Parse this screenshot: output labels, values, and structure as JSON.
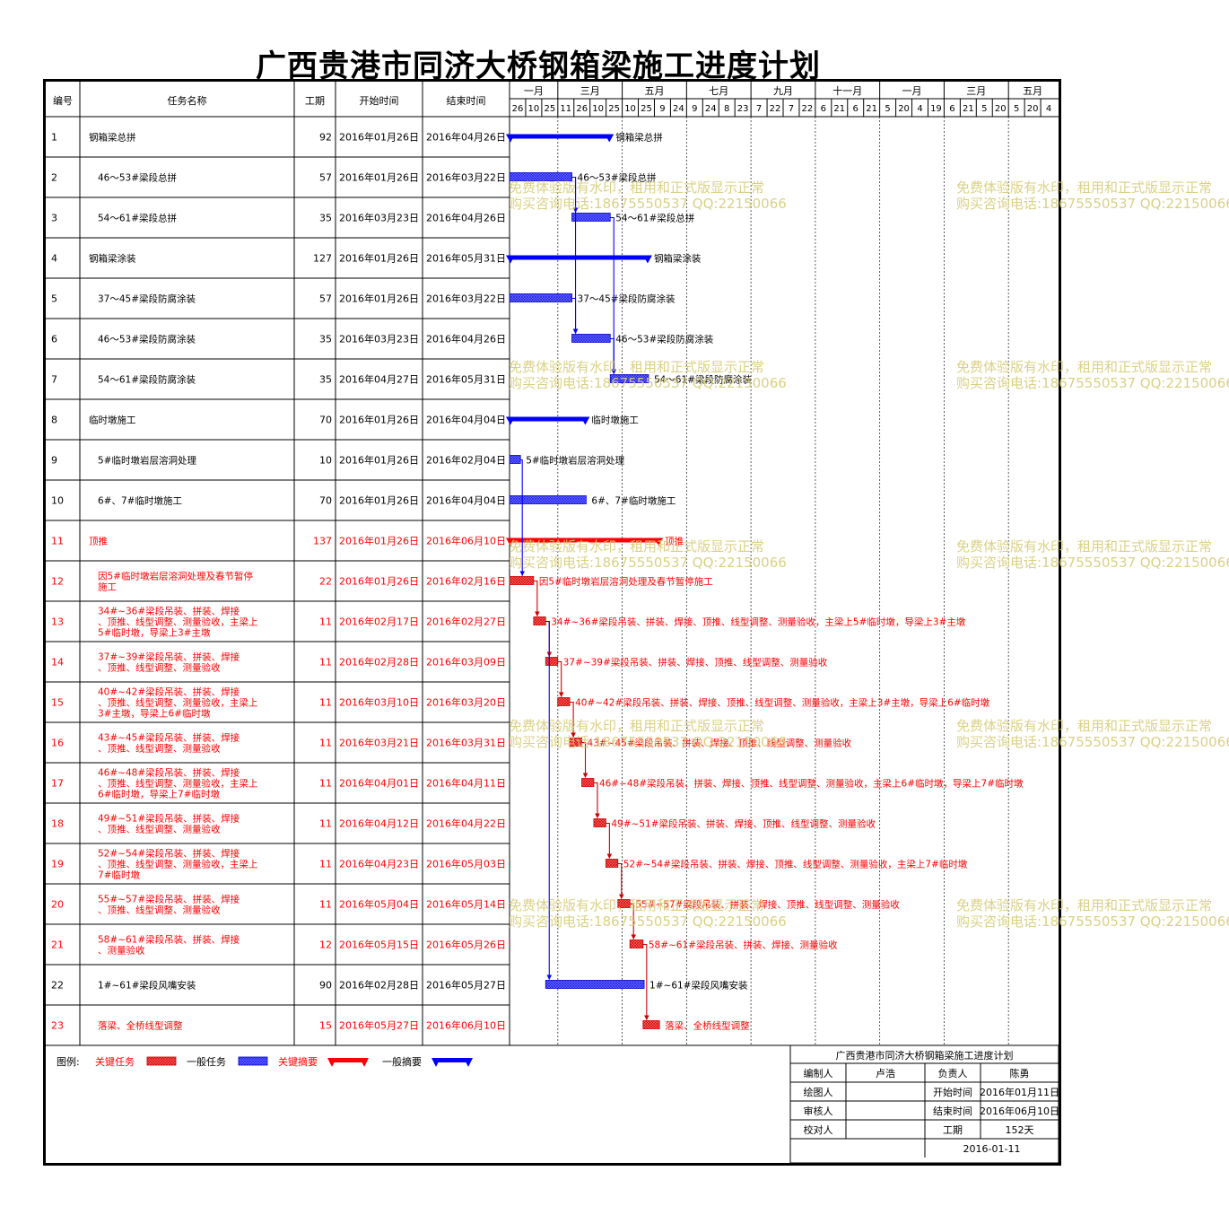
{
  "title": "广西贵港市同济大桥钢箱梁施工进度计划",
  "columns": [
    "编号",
    "任务名称",
    "工期",
    "开始时间",
    "结束时间"
  ],
  "timescale": {
    "months": [
      "一月",
      "三月",
      "五月",
      "七月",
      "九月",
      "十一月",
      "一月",
      "三月",
      "五月"
    ],
    "days": [
      "26",
      "10",
      "25",
      "11",
      "26",
      "10",
      "25",
      "10",
      "25",
      "9",
      "24",
      "9",
      "24",
      "8",
      "23",
      "7",
      "22",
      "7",
      "22",
      "6",
      "21",
      "6",
      "21",
      "5",
      "20",
      "4",
      "19",
      "6",
      "21",
      "5",
      "20",
      "5",
      "20",
      "4"
    ]
  },
  "chart_data": {
    "type": "gantt",
    "tasks": [
      {
        "id": "1",
        "name": "钢箱梁总拼",
        "duration": "92",
        "start": "2016年01月26日",
        "end": "2016年04月26日",
        "kind": "summary",
        "critical": false
      },
      {
        "id": "2",
        "name": "46～53#梁段总拼",
        "duration": "57",
        "start": "2016年01月26日",
        "end": "2016年03月22日",
        "kind": "task",
        "critical": false
      },
      {
        "id": "3",
        "name": "54～61#梁段总拼",
        "duration": "35",
        "start": "2016年03月23日",
        "end": "2016年04月26日",
        "kind": "task",
        "critical": false
      },
      {
        "id": "4",
        "name": "钢箱梁涂装",
        "duration": "127",
        "start": "2016年01月26日",
        "end": "2016年05月31日",
        "kind": "summary",
        "critical": false
      },
      {
        "id": "5",
        "name": "37～45#梁段防腐涂装",
        "duration": "57",
        "start": "2016年01月26日",
        "end": "2016年03月22日",
        "kind": "task",
        "critical": false
      },
      {
        "id": "6",
        "name": "46～53#梁段防腐涂装",
        "duration": "35",
        "start": "2016年03月23日",
        "end": "2016年04月26日",
        "kind": "task",
        "critical": false
      },
      {
        "id": "7",
        "name": "54～61#梁段防腐涂装",
        "duration": "35",
        "start": "2016年04月27日",
        "end": "2016年05月31日",
        "kind": "task",
        "critical": false
      },
      {
        "id": "8",
        "name": "临时墩施工",
        "duration": "70",
        "start": "2016年01月26日",
        "end": "2016年04月04日",
        "kind": "summary",
        "critical": false
      },
      {
        "id": "9",
        "name": "5#临时墩岩层溶洞处理",
        "duration": "10",
        "start": "2016年01月26日",
        "end": "2016年02月04日",
        "kind": "task",
        "critical": false
      },
      {
        "id": "10",
        "name": "6#、7#临时墩施工",
        "duration": "70",
        "start": "2016年01月26日",
        "end": "2016年04月04日",
        "kind": "task",
        "critical": false
      },
      {
        "id": "11",
        "name": "顶推",
        "duration": "137",
        "start": "2016年01月26日",
        "end": "2016年06月10日",
        "kind": "summary",
        "critical": true
      },
      {
        "id": "12",
        "name": "因5#临时墩岩层溶洞处理及春节暂停施工",
        "duration": "22",
        "start": "2016年01月26日",
        "end": "2016年02月16日",
        "kind": "task",
        "critical": true
      },
      {
        "id": "13",
        "name": "34#~36#梁段吊装、拼装、焊接、顶推、线型调整、测量验收，主梁上5#临时墩，导梁上3#主墩",
        "duration": "11",
        "start": "2016年02月17日",
        "end": "2016年02月27日",
        "kind": "task",
        "critical": true
      },
      {
        "id": "14",
        "name": "37#~39#梁段吊装、拼装、焊接、顶推、线型调整、测量验收",
        "duration": "11",
        "start": "2016年02月28日",
        "end": "2016年03月09日",
        "kind": "task",
        "critical": true
      },
      {
        "id": "15",
        "name": "40#~42#梁段吊装、拼装、焊接、顶推、线型调整、测量验收，主梁上3#主墩，导梁上6#临时墩",
        "duration": "11",
        "start": "2016年03月10日",
        "end": "2016年03月20日",
        "kind": "task",
        "critical": true
      },
      {
        "id": "16",
        "name": "43#~45#梁段吊装、拼装、焊接、顶推、线型调整、测量验收",
        "duration": "11",
        "start": "2016年03月21日",
        "end": "2016年03月31日",
        "kind": "task",
        "critical": true
      },
      {
        "id": "17",
        "name": "46#~48#梁段吊装、拼装、焊接、顶推、线型调整、测量验收，主梁上6#临时墩，导梁上7#临时墩",
        "duration": "11",
        "start": "2016年04月01日",
        "end": "2016年04月11日",
        "kind": "task",
        "critical": true
      },
      {
        "id": "18",
        "name": "49#~51#梁段吊装、拼装、焊接、顶推、线型调整、测量验收",
        "duration": "11",
        "start": "2016年04月12日",
        "end": "2016年04月22日",
        "kind": "task",
        "critical": true
      },
      {
        "id": "19",
        "name": "52#~54#梁段吊装、拼装、焊接、顶推、线型调整、测量验收，主梁上7#临时墩",
        "duration": "11",
        "start": "2016年04月23日",
        "end": "2016年05月03日",
        "kind": "task",
        "critical": true
      },
      {
        "id": "20",
        "name": "55#~57#梁段吊装、拼装、焊接、顶推、线型调整、测量验收",
        "duration": "11",
        "start": "2016年05月04日",
        "end": "2016年05月14日",
        "kind": "task",
        "critical": true
      },
      {
        "id": "21",
        "name": "58#~61#梁段吊装、拼装、焊接、测量验收",
        "duration": "12",
        "start": "2016年05月15日",
        "end": "2016年05月26日",
        "kind": "task",
        "critical": true
      },
      {
        "id": "22",
        "name": "1#~61#梁段风嘴安装",
        "duration": "90",
        "start": "2016年02月28日",
        "end": "2016年05月27日",
        "kind": "task",
        "critical": false
      },
      {
        "id": "23",
        "name": "落梁、全桥线型调整",
        "duration": "15",
        "start": "2016年05月27日",
        "end": "2016年06月10日",
        "kind": "task",
        "critical": true
      }
    ],
    "links": [
      [
        "2",
        "3"
      ],
      [
        "2",
        "6"
      ],
      [
        "3",
        "7"
      ],
      [
        "5",
        "6"
      ],
      [
        "6",
        "7"
      ],
      [
        "9",
        "12"
      ],
      [
        "12",
        "13"
      ],
      [
        "13",
        "14"
      ],
      [
        "14",
        "15"
      ],
      [
        "15",
        "16"
      ],
      [
        "16",
        "17"
      ],
      [
        "17",
        "18"
      ],
      [
        "18",
        "19"
      ],
      [
        "19",
        "20"
      ],
      [
        "20",
        "21"
      ],
      [
        "21",
        "23"
      ],
      [
        "13",
        "22"
      ]
    ],
    "colors": {
      "critical": "#ff0000",
      "normal": "#0000ff",
      "text_critical": "#ff0000",
      "text_normal": "#000000"
    }
  },
  "legend": {
    "title": "图例:",
    "items": [
      {
        "label": "关键任务",
        "kind": "task",
        "color": "#ff0000"
      },
      {
        "label": "一般任务",
        "kind": "task",
        "color": "#0000ff"
      },
      {
        "label": "关键摘要",
        "kind": "summary",
        "color": "#ff0000"
      },
      {
        "label": "一般摘要",
        "kind": "summary",
        "color": "#0000ff"
      }
    ]
  },
  "info_box": {
    "title": "广西贵港市同济大桥钢箱梁施工进度计划",
    "rows": [
      [
        "编制人",
        "卢浩",
        "负责人",
        "陈勇"
      ],
      [
        "绘图人",
        "",
        "开始时间",
        "2016年01月11日"
      ],
      [
        "审核人",
        "",
        "结束时间",
        "2016年06月10日"
      ],
      [
        "校对人",
        "",
        "工期",
        "152天"
      ]
    ],
    "date": "2016-01-11"
  },
  "watermark": [
    "免费体验版有水印，租用和正式版显示正常",
    "购买咨询电话:18675550537 QQ:22150066"
  ]
}
